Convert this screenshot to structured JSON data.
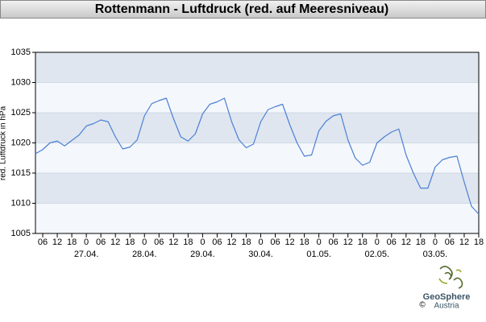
{
  "chart_data": {
    "type": "line",
    "title": "Rottenmann - Luftdruck (red. auf Meeresniveau)",
    "y_label": "red. Luftdruck in hPa",
    "x": [
      "26.04. 03",
      "26.04. 06",
      "26.04. 09",
      "26.04. 12",
      "26.04. 15",
      "26.04. 18",
      "26.04. 21",
      "27.04. 00",
      "27.04. 03",
      "27.04. 06",
      "27.04. 09",
      "27.04. 12",
      "27.04. 15",
      "27.04. 18",
      "27.04. 21",
      "28.04. 00",
      "28.04. 03",
      "28.04. 06",
      "28.04. 09",
      "28.04. 12",
      "28.04. 15",
      "28.04. 18",
      "28.04. 21",
      "29.04. 00",
      "29.04. 03",
      "29.04. 06",
      "29.04. 09",
      "29.04. 12",
      "29.04. 15",
      "29.04. 18",
      "29.04. 21",
      "30.04. 00",
      "30.04. 03",
      "30.04. 06",
      "30.04. 09",
      "30.04. 12",
      "30.04. 15",
      "30.04. 18",
      "30.04. 21",
      "01.05. 00",
      "01.05. 03",
      "01.05. 06",
      "01.05. 09",
      "01.05. 12",
      "01.05. 15",
      "01.05. 18",
      "01.05. 21",
      "02.05. 00",
      "02.05. 03",
      "02.05. 06",
      "02.05. 09",
      "02.05. 12",
      "02.05. 15",
      "02.05. 18",
      "02.05. 21",
      "03.05. 00",
      "03.05. 03",
      "03.05. 06",
      "03.05. 09",
      "03.05. 12",
      "03.05. 15",
      "03.05. 18"
    ],
    "series": [
      {
        "color": "#4a7fd4",
        "values": [
          1018.2,
          1018.9,
          1020.0,
          1020.3,
          1019.5,
          1020.4,
          1021.3,
          1022.8,
          1023.2,
          1023.8,
          1023.5,
          1021.0,
          1019.0,
          1019.3,
          1020.5,
          1024.5,
          1026.5,
          1027.0,
          1027.4,
          1024.0,
          1021.0,
          1020.3,
          1021.5,
          1024.8,
          1026.4,
          1026.8,
          1027.4,
          1023.5,
          1020.5,
          1019.2,
          1019.8,
          1023.5,
          1025.5,
          1026.0,
          1026.4,
          1023.0,
          1020.0,
          1017.8,
          1018.0,
          1022.0,
          1023.6,
          1024.5,
          1024.8,
          1020.5,
          1017.5,
          1016.3,
          1016.8,
          1020.0,
          1021.0,
          1021.8,
          1022.3,
          1018.0,
          1015.0,
          1012.5,
          1012.5,
          1016.0,
          1017.2,
          1017.6,
          1017.8,
          1013.5,
          1009.5,
          1008.2
        ]
      }
    ],
    "xlim": [
      "26.04. 03",
      "03.05. 18"
    ],
    "xticks": [
      {
        "value": "26.04. 06",
        "label": "06"
      },
      {
        "value": "26.04. 12",
        "label": "12"
      },
      {
        "value": "26.04. 18",
        "label": "18"
      },
      {
        "value": "27.04. 00",
        "label": "0"
      },
      {
        "value": "27.04. 06",
        "label": "06"
      },
      {
        "value": "27.04. 12",
        "label": "12"
      },
      {
        "value": "27.04. 18",
        "label": "18"
      },
      {
        "value": "28.04. 00",
        "label": "0"
      },
      {
        "value": "28.04. 06",
        "label": "06"
      },
      {
        "value": "28.04. 12",
        "label": "12"
      },
      {
        "value": "28.04. 18",
        "label": "18"
      },
      {
        "value": "29.04. 00",
        "label": "0"
      },
      {
        "value": "29.04. 06",
        "label": "06"
      },
      {
        "value": "29.04. 12",
        "label": "12"
      },
      {
        "value": "29.04. 18",
        "label": "18"
      },
      {
        "value": "30.04. 00",
        "label": "0"
      },
      {
        "value": "30.04. 06",
        "label": "06"
      },
      {
        "value": "30.04. 12",
        "label": "12"
      },
      {
        "value": "30.04. 18",
        "label": "18"
      },
      {
        "value": "01.05. 00",
        "label": "0"
      },
      {
        "value": "01.05. 06",
        "label": "06"
      },
      {
        "value": "01.05. 12",
        "label": "12"
      },
      {
        "value": "01.05. 18",
        "label": "18"
      },
      {
        "value": "02.05. 00",
        "label": "0"
      },
      {
        "value": "02.05. 06",
        "label": "06"
      },
      {
        "value": "02.05. 12",
        "label": "12"
      },
      {
        "value": "02.05. 18",
        "label": "18"
      },
      {
        "value": "03.05. 00",
        "label": "0"
      },
      {
        "value": "03.05. 06",
        "label": "06"
      },
      {
        "value": "03.05. 12",
        "label": "12"
      },
      {
        "value": "03.05. 18",
        "label": "18"
      }
    ],
    "date_labels": [
      {
        "value": "27.04. 00",
        "label": "27.04."
      },
      {
        "value": "28.04. 00",
        "label": "28.04."
      },
      {
        "value": "29.04. 00",
        "label": "29.04."
      },
      {
        "value": "30.04. 00",
        "label": "30.04."
      },
      {
        "value": "01.05. 00",
        "label": "01.05."
      },
      {
        "value": "02.05. 00",
        "label": "02.05."
      },
      {
        "value": "03.05. 00",
        "label": "03.05."
      }
    ],
    "ylim": [
      1005,
      1035
    ],
    "yticks": [
      1005,
      1010,
      1015,
      1020,
      1025,
      1030,
      1035
    ],
    "band_colors": [
      "#f4f7fb",
      "#dfe6f0"
    ]
  },
  "logo": {
    "name": "GeoSphere",
    "sub": "Austria",
    "copyright": "©"
  }
}
